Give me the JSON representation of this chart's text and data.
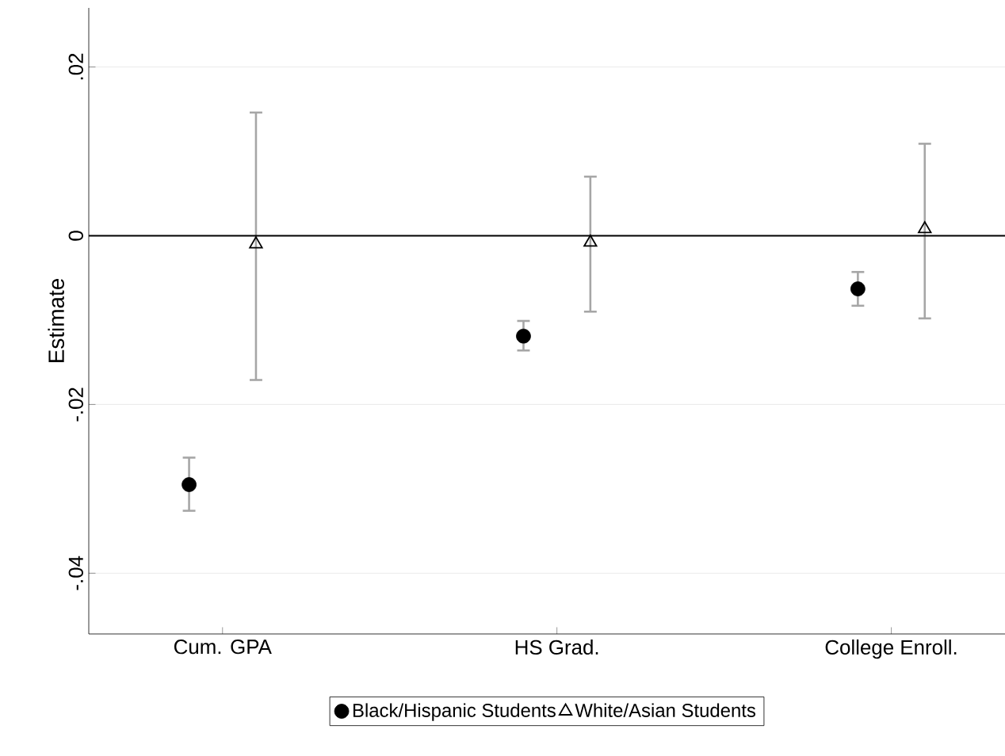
{
  "chart_data": {
    "type": "scatter",
    "ylabel": "Estimate",
    "categories": [
      "Cum. GPA",
      "HS Grad.",
      "College Enroll."
    ],
    "series": [
      {
        "name": "Black/Hispanic Students",
        "color": "#000000",
        "marker": "circle",
        "values": [
          -0.0295,
          -0.0119,
          -0.0063
        ],
        "errors": [
          [
            -0.0326,
            -0.0263
          ],
          [
            -0.0136,
            -0.0101
          ],
          [
            -0.0083,
            -0.0043
          ]
        ]
      },
      {
        "name": "White/Asian Students",
        "color": "#000000",
        "marker": "triangle",
        "values": [
          -0.001,
          -0.0008,
          0.0008
        ],
        "errors": [
          [
            -0.0171,
            0.0146
          ],
          [
            -0.009,
            0.007
          ],
          [
            -0.0098,
            0.0109
          ]
        ]
      }
    ],
    "ylim": [
      -0.0472,
      0.027
    ],
    "yticks": [
      {
        "value": 0.02,
        "label": ".02"
      },
      {
        "value": 0,
        "label": "0"
      },
      {
        "value": -0.02,
        "label": "-.02"
      },
      {
        "value": -0.04,
        "label": "-.04"
      }
    ],
    "ref_lines": [
      {
        "axis": "y",
        "value": 0,
        "color": "#000000"
      }
    ],
    "grid": "y",
    "legend": "bottom"
  }
}
